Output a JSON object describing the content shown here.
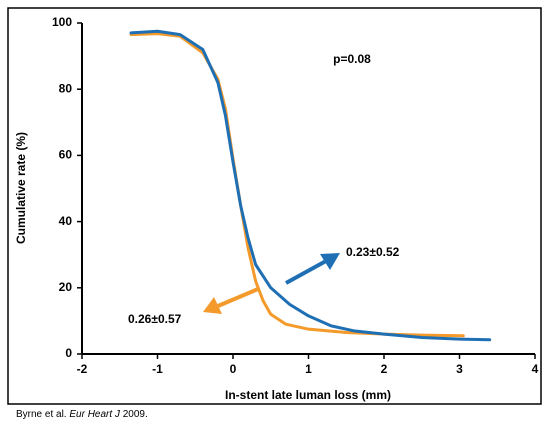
{
  "chart_data": {
    "type": "line",
    "xlabel": "In-stent late luman loss (mm)",
    "ylabel": "Cumulative rate (%)",
    "xlim": [
      -2,
      4
    ],
    "xticks": [
      -2,
      -1,
      0,
      1,
      2,
      3,
      4
    ],
    "ylim": [
      0,
      100
    ],
    "yticks": [
      0,
      20,
      40,
      60,
      80,
      100
    ],
    "annotations": [
      "p=0.08",
      "0.23±0.52",
      "0.26±0.57"
    ],
    "source": [
      "Byrne et al. ",
      "Eur Heart J",
      " 2009."
    ],
    "series": [
      {
        "color": "#f39a2b",
        "x": [
          -1.35,
          -1,
          -0.7,
          -0.4,
          -0.2,
          -0.1,
          0,
          0.1,
          0.2,
          0.3,
          0.4,
          0.5,
          0.7,
          1.0,
          1.5,
          2.0,
          2.5,
          3.05
        ],
        "values": [
          96.5,
          96.8,
          96,
          91,
          83,
          74,
          59,
          45,
          32,
          22,
          16,
          12,
          9,
          7.5,
          6.5,
          6,
          5.7,
          5.5
        ]
      },
      {
        "color": "#1f6fb4",
        "x": [
          -1.35,
          -1,
          -0.7,
          -0.4,
          -0.2,
          -0.1,
          0,
          0.1,
          0.2,
          0.3,
          0.5,
          0.75,
          1.0,
          1.3,
          1.6,
          2.0,
          2.5,
          3.0,
          3.4
        ],
        "values": [
          97,
          97.5,
          96.5,
          92,
          82,
          72,
          58,
          45,
          35,
          27,
          20,
          15,
          11.5,
          8.5,
          7,
          6,
          5,
          4.5,
          4.3
        ]
      }
    ]
  }
}
